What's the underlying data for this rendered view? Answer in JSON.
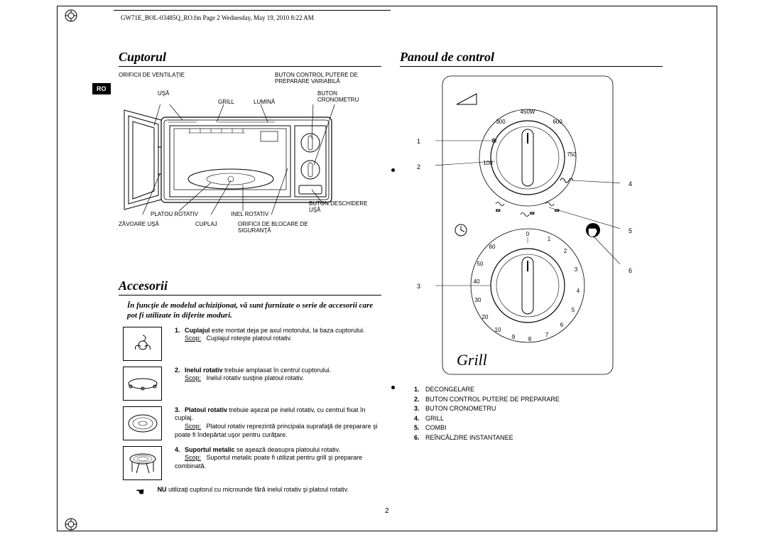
{
  "doc_header": "GW71E_BOL-03485Q_RO.fm  Page 2  Wednesday, May 19, 2010  8:22 AM",
  "lang_tag": "RO",
  "page_number": "2",
  "left": {
    "title1": "Cuptorul",
    "oven_labels": {
      "ventilation": "ORIFICII DE VENTILAŢIE",
      "door": "UŞĂ",
      "grill": "GRILL",
      "light": "LUMINĂ",
      "power_btn": "BUTON CONTROL PUTERE DE PREPARARE VARIABILĂ",
      "timer_btn": "BUTON CRONOMETRU",
      "turntable": "PLATOU ROTATIV",
      "roller": "INEL ROTATIV",
      "door_latches": "ZĂVOARE UŞĂ",
      "coupler": "CUPLAJ",
      "safety_holes": "ORIFICII DE BLOCARE DE SIGURANŢĂ",
      "door_open_btn": "BUTON DESCHIDERE UŞĂ"
    },
    "title2": "Accesorii",
    "intro": "În funcţie de modelul achiziţionat, vă sunt furnizate o serie de accesorii care pot fi utilizate în diferite moduri.",
    "items": [
      {
        "num": "1.",
        "bold": "Cuplajul",
        "rest": " este montat deja pe axul motorului, la baza cuptorului.",
        "scop_label": "Scop:",
        "scop": "Cuplajul roteşte platoul rotativ."
      },
      {
        "num": "2.",
        "bold": "Inelul rotativ",
        "rest": " trebuie amplasat în centrul cuptorului.",
        "scop_label": "Scop:",
        "scop": "Inelul rotativ susţine platoul rotativ."
      },
      {
        "num": "3.",
        "bold": "Platoul rotativ",
        "rest": " trebuie aşezat pe inelul rotativ, cu centrul fixat în cuplaj.",
        "scop_label": "Scop:",
        "scop": "Platoul rotativ reprezintă principala suprafaţă de preparare şi poate fi îndepărtat uşor pentru curăţare."
      },
      {
        "num": "4.",
        "bold": "Suportul metalic",
        "rest": " se aşează deasupra platoului rotativ.",
        "scop_label": "Scop:",
        "scop": "Suportul metalic poate fi utilizat pentru grill şi preparare combinată."
      }
    ],
    "note_bold": "NU",
    "note_rest": " utilizaţi cuptorul cu microunde fără inelul rotativ şi platoul rotativ."
  },
  "right": {
    "title": "Panoul de control",
    "panel": {
      "power_dial": {
        "top_label": "450W",
        "ticks": [
          "100",
          "300",
          "600",
          "750"
        ]
      },
      "timer_dial": {
        "ticks": [
          "0",
          "1",
          "2",
          "3",
          "4",
          "5",
          "6",
          "7",
          "8",
          "9",
          "10",
          "20",
          "30",
          "40",
          "50",
          "60"
        ]
      },
      "callouts": [
        "1",
        "2",
        "3",
        "4",
        "5",
        "6"
      ],
      "grill_text": "Grill"
    },
    "legend": [
      {
        "num": "1.",
        "text": "DECONGELARE"
      },
      {
        "num": "2.",
        "text": "BUTON CONTROL PUTERE DE PREPARARE"
      },
      {
        "num": "3.",
        "text": "BUTON CRONOMETRU"
      },
      {
        "num": "4.",
        "text": "GRILL"
      },
      {
        "num": "5.",
        "text": "COMBI"
      },
      {
        "num": "6.",
        "text": "REÎNCĂLZIRE INSTANTANEE"
      }
    ]
  },
  "style": {
    "colors": {
      "text": "#000000",
      "bg": "#ffffff"
    },
    "fonts": {
      "title": "Times italic bold 18pt",
      "body": "Arial 8-9pt"
    }
  }
}
